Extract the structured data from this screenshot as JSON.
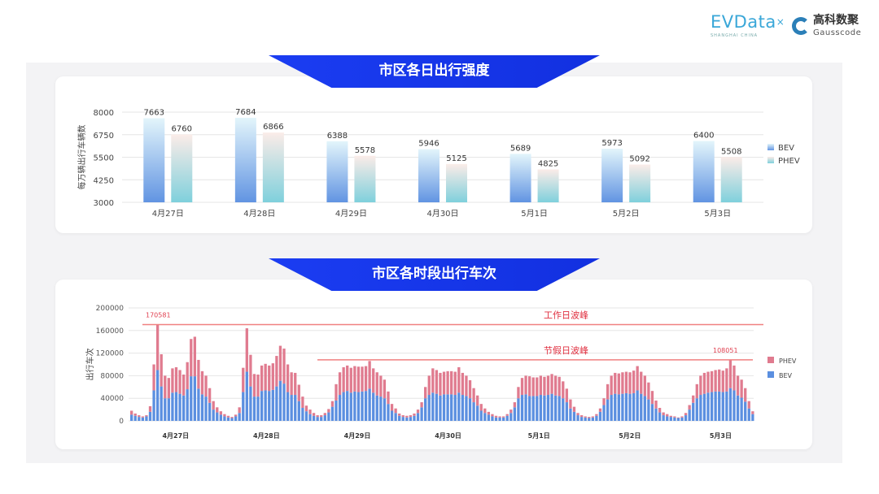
{
  "logos": {
    "evdata": "EVData",
    "evdata_sub": "SHANGHAI CHINA",
    "gauss_cn": "高科数聚",
    "gauss_en": "Gausscode"
  },
  "colors": {
    "banner": "#1b3df2",
    "bev": "#5b8fe0",
    "phev": "#e07b8f",
    "peak_line": "#f08080"
  },
  "chart_data": [
    {
      "type": "bar",
      "title": "市区各日出行强度",
      "ylabel": "每万辆出行车辆数",
      "ylim": [
        3000,
        8000
      ],
      "yticks": [
        3000,
        4250,
        5500,
        6750,
        8000
      ],
      "grid": true,
      "legend": "right",
      "categories": [
        "4月27日",
        "4月28日",
        "4月29日",
        "4月30日",
        "5月1日",
        "5月2日",
        "5月3日"
      ],
      "series": [
        {
          "name": "BEV",
          "values": [
            7663,
            7684,
            6388,
            5946,
            5689,
            5973,
            6400
          ]
        },
        {
          "name": "PHEV",
          "values": [
            6760,
            6866,
            5578,
            5125,
            4825,
            5092,
            5508
          ]
        }
      ]
    },
    {
      "type": "bar",
      "stacked": true,
      "title": "市区各时段出行车次",
      "ylabel": "出行车次",
      "ylim": [
        0,
        200000
      ],
      "yticks": [
        0,
        40000,
        80000,
        120000,
        160000,
        200000
      ],
      "grid": true,
      "legend": "right",
      "day_labels": [
        "4月27日",
        "4月28日",
        "4月29日",
        "4月30日",
        "5月1日",
        "5月2日",
        "5月3日"
      ],
      "series": [
        {
          "name": "PHEV",
          "values": [
            7000,
            4000,
            3000,
            2000,
            2000,
            10000,
            46000,
            80581,
            57000,
            40000,
            36000,
            43000,
            44000,
            42000,
            37000,
            48000,
            66000,
            70000,
            51000,
            41000,
            37000,
            26000,
            15000,
            9000,
            6000,
            4000,
            3000,
            2000,
            3000,
            10000,
            43000,
            77000,
            56000,
            40000,
            39000,
            45000,
            47000,
            45000,
            47000,
            54000,
            62000,
            62000,
            49000,
            40000,
            39000,
            29000,
            20000,
            10000,
            8000,
            5000,
            3000,
            3000,
            4000,
            6000,
            10000,
            29000,
            40000,
            44000,
            45000,
            44000,
            45000,
            45000,
            44000,
            44000,
            49000,
            43000,
            41000,
            37000,
            33000,
            22000,
            12000,
            8000,
            4000,
            3000,
            3000,
            3000,
            4000,
            6000,
            9000,
            20000,
            34000,
            43000,
            42000,
            40000,
            40000,
            41000,
            41000,
            41000,
            45000,
            39000,
            36000,
            32000,
            25000,
            18000,
            12000,
            8000,
            5000,
            4000,
            3000,
            2000,
            2000,
            3000,
            6000,
            9000,
            20000,
            30000,
            33000,
            35000,
            33000,
            33000,
            34000,
            33000,
            34000,
            35000,
            35000,
            34000,
            30000,
            24000,
            16000,
            9000,
            4000,
            3000,
            2000,
            2000,
            2000,
            3000,
            6000,
            12000,
            27000,
            34000,
            37000,
            37000,
            38000,
            38000,
            38000,
            40000,
            43000,
            39000,
            36000,
            30000,
            23000,
            14000,
            8000,
            5000,
            4000,
            2000,
            2000,
            1000,
            2000,
            4000,
            8000,
            13000,
            25000,
            34000,
            37000,
            37000,
            37000,
            38000,
            39000,
            38000,
            41000,
            50051,
            44000,
            35000,
            32000,
            24000,
            13000,
            5000
          ]
        },
        {
          "name": "BEV",
          "values": [
            11000,
            9000,
            7000,
            6000,
            8000,
            16000,
            54000,
            90000,
            61000,
            40000,
            40000,
            50000,
            51000,
            48000,
            45000,
            56000,
            79000,
            79000,
            57000,
            47000,
            43000,
            32000,
            20000,
            15000,
            11000,
            8000,
            6000,
            5000,
            8000,
            14000,
            51000,
            87000,
            61000,
            43000,
            43000,
            53000,
            54000,
            53000,
            55000,
            61000,
            71000,
            66000,
            51000,
            46000,
            46000,
            35000,
            23000,
            17000,
            12000,
            9000,
            7000,
            7000,
            10000,
            15000,
            25000,
            36000,
            46000,
            51000,
            53000,
            50000,
            52000,
            51000,
            52000,
            53000,
            57000,
            50000,
            45000,
            43000,
            40000,
            30000,
            18000,
            14000,
            9000,
            7000,
            6000,
            7000,
            9000,
            14000,
            24000,
            40000,
            46000,
            50000,
            48000,
            45000,
            47000,
            47000,
            47000,
            46000,
            50000,
            46000,
            44000,
            40000,
            33000,
            27000,
            18000,
            14000,
            11000,
            8000,
            6000,
            6000,
            6000,
            9000,
            14000,
            24000,
            40000,
            46000,
            47000,
            44000,
            44000,
            44000,
            46000,
            45000,
            46000,
            48000,
            45000,
            44000,
            40000,
            33000,
            22000,
            16000,
            10000,
            7000,
            6000,
            5000,
            6000,
            9000,
            16000,
            28000,
            38000,
            46000,
            48000,
            47000,
            48000,
            49000,
            48000,
            49000,
            54000,
            48000,
            44000,
            38000,
            30000,
            22000,
            15000,
            10000,
            8000,
            7000,
            6000,
            5000,
            6000,
            10000,
            20000,
            32000,
            40000,
            46000,
            48000,
            50000,
            51000,
            52000,
            52000,
            51000,
            52000,
            58000,
            54000,
            45000,
            41000,
            34000,
            22000,
            12000
          ]
        }
      ],
      "annotations": [
        {
          "label": "工作日波峰",
          "value": 170581,
          "value_label": "170581"
        },
        {
          "label": "节假日波峰",
          "value": 108051,
          "value_label": "108051"
        }
      ]
    }
  ]
}
